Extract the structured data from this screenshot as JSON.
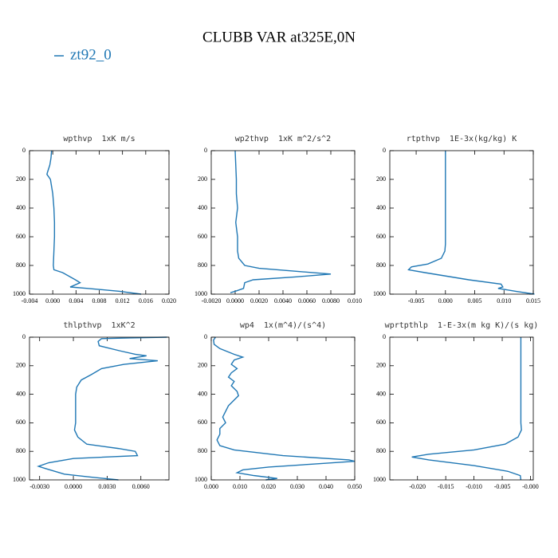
{
  "title": "CLUBB VAR at325E,0N",
  "chart_data": [
    {
      "type": "line",
      "title": "wpthvp  1xK m/s",
      "y": [
        0,
        50,
        100,
        150,
        165,
        200,
        250,
        300,
        400,
        500,
        600,
        700,
        800,
        830,
        850,
        900,
        920,
        940,
        950,
        960,
        980,
        1000
      ],
      "series": [
        {
          "name": "zt92_0",
          "color": "#1f77b4",
          "values": [
            -0.0002,
            -0.0003,
            -0.0005,
            -0.0009,
            -0.001,
            -0.0004,
            -0.0002,
            0,
            0.0002,
            0.0003,
            0.0003,
            0.0002,
            0.0001,
            0.0002,
            0.0017,
            0.0039,
            0.0047,
            0.0036,
            0.003,
            0.006,
            0.0115,
            0.0152
          ]
        }
      ],
      "xlim": [
        -0.004,
        0.02
      ],
      "xticks": [
        {
          "value": -0.004,
          "label": "-0.004"
        },
        {
          "value": 0,
          "label": "0.000"
        },
        {
          "value": 0.004,
          "label": "0.004"
        },
        {
          "value": 0.008,
          "label": "0.008"
        },
        {
          "value": 0.012,
          "label": "0.012"
        },
        {
          "value": 0.016,
          "label": "0.016"
        },
        {
          "value": 0.02,
          "label": "0.020"
        }
      ],
      "ylim": [
        1000,
        0
      ],
      "yticks": [
        0,
        200,
        400,
        600,
        800,
        1000
      ]
    },
    {
      "type": "line",
      "title": "wp2thvp  1xK m^2/s^2",
      "y": [
        0,
        200,
        300,
        400,
        500,
        600,
        700,
        750,
        800,
        820,
        840,
        860,
        880,
        900,
        920,
        960,
        980,
        990
      ],
      "series": [
        {
          "color": "#1f77b4",
          "values": [
            0,
            0.0001,
            0.0001,
            0.0002,
            5e-05,
            0.0002,
            0.0002,
            0.0003,
            0.0008,
            0.002,
            0.005,
            0.008,
            0.005,
            0.0015,
            0.0008,
            0.0007,
            0,
            -0.0004
          ]
        }
      ],
      "xlim": [
        -0.002,
        0.01
      ],
      "xticks": [
        {
          "value": -0.002,
          "label": "-0.0020"
        },
        {
          "value": 0,
          "label": "0.0000"
        },
        {
          "value": 0.002,
          "label": "0.0020"
        },
        {
          "value": 0.004,
          "label": "0.0040"
        },
        {
          "value": 0.006,
          "label": "0.0060"
        },
        {
          "value": 0.008,
          "label": "0.0080"
        },
        {
          "value": 0.01,
          "label": "0.010"
        }
      ],
      "ylim": [
        1000,
        0
      ],
      "yticks": [
        0,
        200,
        400,
        600,
        800,
        1000
      ]
    },
    {
      "type": "line",
      "title": "rtpthvp  1E-3x(kg/kg) K",
      "y": [
        0,
        300,
        600,
        650,
        700,
        750,
        790,
        810,
        830,
        850,
        900,
        930,
        950,
        960,
        980,
        1000
      ],
      "series": [
        {
          "color": "#1f77b4",
          "values": [
            0,
            0,
            0,
            0,
            -0.0001,
            -0.0007,
            -0.003,
            -0.0058,
            -0.0063,
            -0.0035,
            0.004,
            0.0095,
            0.0098,
            0.009,
            0.012,
            0.0152
          ]
        }
      ],
      "xlim": [
        -0.0095,
        0.015
      ],
      "xticks": [
        {
          "value": -0.005,
          "label": "-0.005"
        },
        {
          "value": 0,
          "label": "0.000"
        },
        {
          "value": 0.005,
          "label": "0.005"
        },
        {
          "value": 0.01,
          "label": "0.010"
        },
        {
          "value": 0.015,
          "label": "0.015"
        }
      ],
      "ylim": [
        1000,
        0
      ],
      "yticks": [
        0,
        200,
        400,
        600,
        800,
        1000
      ]
    },
    {
      "type": "line",
      "title": "thlpthvp  1xK^2",
      "y": [
        0,
        5,
        10,
        30,
        60,
        95,
        120,
        130,
        150,
        165,
        190,
        220,
        262,
        300,
        350,
        400,
        500,
        600,
        650,
        700,
        750,
        780,
        800,
        830,
        850,
        880,
        905,
        920,
        960,
        980,
        1000
      ],
      "series": [
        {
          "color": "#1f77b4",
          "values": [
            0.0083,
            0.005,
            0.0025,
            0.0022,
            0.0023,
            0.0041,
            0.0055,
            0.0065,
            0.005,
            0.0075,
            0.0045,
            0.0025,
            0.0016,
            0.0007,
            0.0003,
            0.0002,
            0.0002,
            0.0002,
            0.0001,
            0.0004,
            0.0012,
            0.004,
            0.0055,
            0.0057,
            0,
            -0.0022,
            -0.0031,
            -0.0025,
            -0.0008,
            0.0015,
            0.004
          ]
        }
      ],
      "xlim": [
        -0.0039,
        0.0085
      ],
      "xticks": [
        {
          "value": -0.003,
          "label": "-0.0030"
        },
        {
          "value": 0,
          "label": "0.0000"
        },
        {
          "value": 0.003,
          "label": "0.0030"
        },
        {
          "value": 0.006,
          "label": "0.0060"
        }
      ],
      "ylim": [
        1000,
        0
      ],
      "yticks": [
        0,
        200,
        400,
        600,
        800,
        1000
      ]
    },
    {
      "type": "line",
      "title": "wp4  1x(m^4)/(s^4)",
      "y": [
        0,
        20,
        50,
        80,
        120,
        140,
        160,
        190,
        220,
        250,
        280,
        310,
        340,
        380,
        410,
        440,
        480,
        520,
        560,
        600,
        640,
        680,
        720,
        760,
        790,
        830,
        860,
        870,
        890,
        910,
        930,
        950,
        970,
        990,
        1000
      ],
      "series": [
        {
          "color": "#1f77b4",
          "values": [
            0.0015,
            0.0008,
            0.001,
            0.003,
            0.008,
            0.011,
            0.008,
            0.007,
            0.009,
            0.007,
            0.006,
            0.008,
            0.007,
            0.009,
            0.0095,
            0.008,
            0.006,
            0.005,
            0.004,
            0.005,
            0.003,
            0.003,
            0.002,
            0.003,
            0.008,
            0.025,
            0.048,
            0.05,
            0.035,
            0.02,
            0.011,
            0.009,
            0.015,
            0.023,
            0.019
          ]
        }
      ],
      "xlim": [
        0,
        0.05
      ],
      "xticks": [
        {
          "value": 0,
          "label": "0.000"
        },
        {
          "value": 0.01,
          "label": "0.010"
        },
        {
          "value": 0.02,
          "label": "0.020"
        },
        {
          "value": 0.03,
          "label": "0.030"
        },
        {
          "value": 0.04,
          "label": "0.040"
        },
        {
          "value": 0.05,
          "label": "0.050"
        }
      ],
      "ylim": [
        1000,
        0
      ],
      "yticks": [
        0,
        200,
        400,
        600,
        800,
        1000
      ]
    },
    {
      "type": "line",
      "title": "wprtpthlp  1-E-3x(m kg K)/(s kg)",
      "y": [
        0,
        300,
        600,
        650,
        700,
        750,
        790,
        820,
        840,
        860,
        900,
        940,
        970,
        1000
      ],
      "series": [
        {
          "color": "#1f77b4",
          "values": [
            -0.0017,
            -0.0017,
            -0.0017,
            -0.0016,
            -0.0022,
            -0.0045,
            -0.01,
            -0.018,
            -0.021,
            -0.018,
            -0.01,
            -0.004,
            -0.0018,
            -0.0017
          ]
        }
      ],
      "xlim": [
        -0.0249,
        0.0005
      ],
      "xticks": [
        {
          "value": -0.02,
          "label": "-0.020"
        },
        {
          "value": -0.015,
          "label": "-0.015"
        },
        {
          "value": -0.01,
          "label": "-0.010"
        },
        {
          "value": -0.005,
          "label": "-0.005"
        },
        {
          "value": 0,
          "label": "-0.000"
        }
      ],
      "ylim": [
        1000,
        0
      ],
      "yticks": [
        0,
        200,
        400,
        600,
        800,
        1000
      ]
    }
  ]
}
